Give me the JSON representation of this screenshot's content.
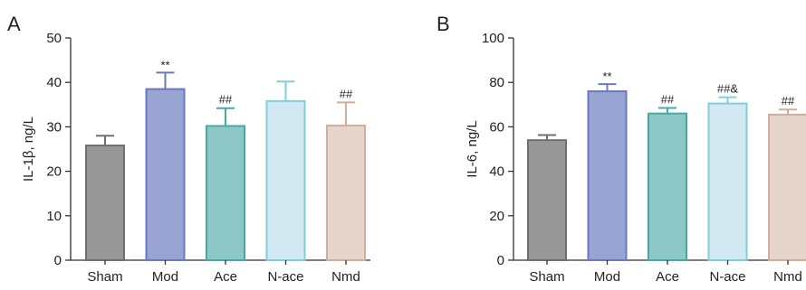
{
  "chart_data": [
    {
      "panel": "A",
      "type": "bar",
      "ylabel": "IL-1β, ng/L",
      "ylim": [
        0,
        50
      ],
      "yticks": [
        0,
        10,
        20,
        30,
        40,
        50
      ],
      "categories": [
        "Sham",
        "Mod",
        "Ace",
        "N-ace",
        "Nmd"
      ],
      "values": [
        25.8,
        38.5,
        30.2,
        35.8,
        30.3
      ],
      "errors": [
        2.2,
        3.7,
        4.0,
        4.4,
        5.2
      ],
      "annotations": [
        "",
        "**",
        "##",
        "",
        "##"
      ],
      "fill_colors": [
        "#979797",
        "#9aa4d3",
        "#8dc8c6",
        "#d2e9f1",
        "#e6d5cd"
      ],
      "edge_colors": [
        "#6f6f6f",
        "#6a78c1",
        "#45aaa6",
        "#7ccfe0",
        "#cfae9d"
      ]
    },
    {
      "panel": "B",
      "type": "bar",
      "ylabel": "IL-6, ng/L",
      "ylim": [
        0,
        100
      ],
      "yticks": [
        0,
        20,
        40,
        60,
        80,
        100
      ],
      "categories": [
        "Sham",
        "Mod",
        "Ace",
        "N-ace",
        "Nmd"
      ],
      "values": [
        54,
        76,
        66,
        70.5,
        65.5
      ],
      "errors": [
        2.3,
        3.2,
        2.5,
        2.8,
        2.3
      ],
      "annotations": [
        "",
        "**",
        "##",
        "##&",
        "##"
      ],
      "fill_colors": [
        "#979797",
        "#9aa4d3",
        "#8dc8c6",
        "#d2e9f1",
        "#e6d5cd"
      ],
      "edge_colors": [
        "#6f6f6f",
        "#6a78c1",
        "#45aaa6",
        "#7ccfe0",
        "#cfae9d"
      ]
    }
  ]
}
